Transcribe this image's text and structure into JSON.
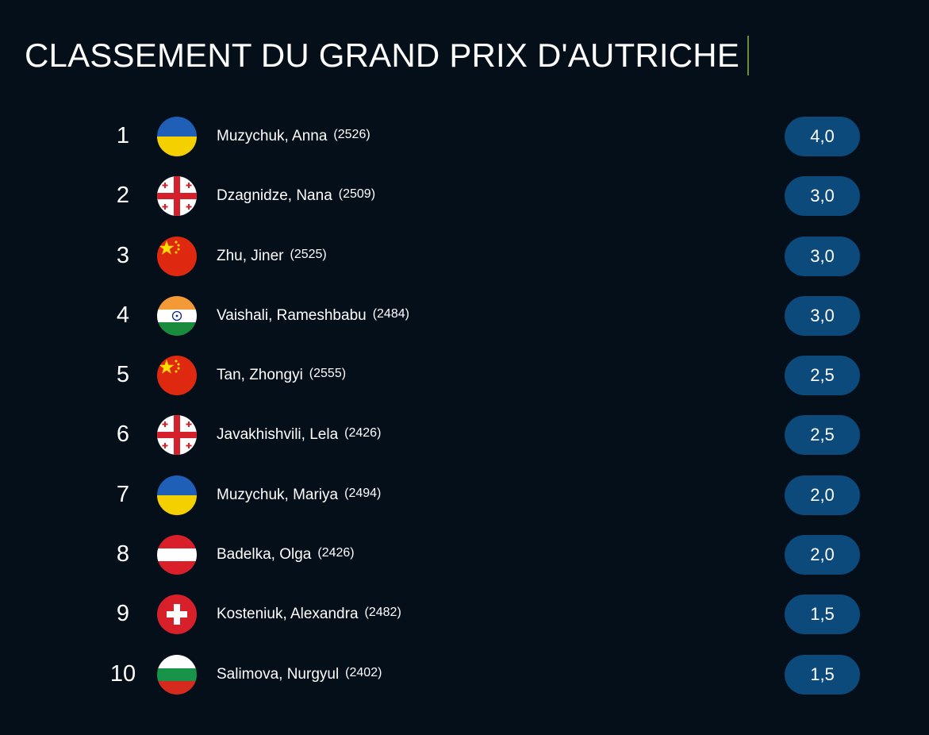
{
  "title": "CLASSEMENT DU GRAND PRIX D'AUTRICHE",
  "colors": {
    "background": "#050f1a",
    "score_pill": "#0b4a7a",
    "cursor": "#6f8a3a"
  },
  "standings": [
    {
      "rank": "1",
      "flag": "ukraine-flag-icon",
      "name": "Muzychuk, Anna",
      "rating": "(2526)",
      "score": "4,0"
    },
    {
      "rank": "2",
      "flag": "georgia-flag-icon",
      "name": "Dzagnidze, Nana",
      "rating": "(2509)",
      "score": "3,0"
    },
    {
      "rank": "3",
      "flag": "china-flag-icon",
      "name": "Zhu, Jiner",
      "rating": "(2525)",
      "score": "3,0"
    },
    {
      "rank": "4",
      "flag": "india-flag-icon",
      "name": "Vaishali, Rameshbabu",
      "rating": "(2484)",
      "score": "3,0"
    },
    {
      "rank": "5",
      "flag": "china-flag-icon",
      "name": "Tan, Zhongyi",
      "rating": "(2555)",
      "score": "2,5"
    },
    {
      "rank": "6",
      "flag": "georgia-flag-icon",
      "name": "Javakhishvili, Lela",
      "rating": "(2426)",
      "score": "2,5"
    },
    {
      "rank": "7",
      "flag": "ukraine-flag-icon",
      "name": "Muzychuk, Mariya",
      "rating": "(2494)",
      "score": "2,0"
    },
    {
      "rank": "8",
      "flag": "austria-flag-icon",
      "name": "Badelka, Olga",
      "rating": "(2426)",
      "score": "2,0"
    },
    {
      "rank": "9",
      "flag": "switzerland-flag-icon",
      "name": "Kosteniuk, Alexandra",
      "rating": "(2482)",
      "score": "1,5"
    },
    {
      "rank": "10",
      "flag": "bulgaria-flag-icon",
      "name": "Salimova, Nurgyul",
      "rating": "(2402)",
      "score": "1,5"
    }
  ]
}
